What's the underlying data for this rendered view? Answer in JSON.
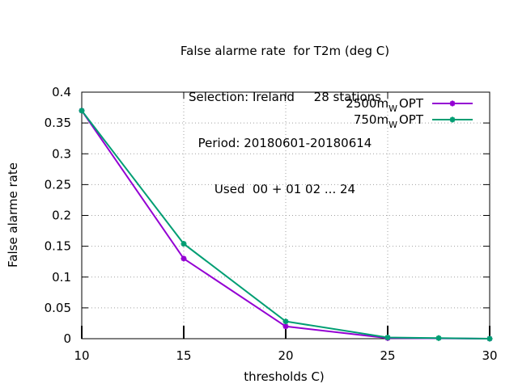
{
  "chart_data": {
    "type": "line",
    "title_lines": [
      "False alarme rate  for T2m (deg C)",
      "Selection: Ireland     28 stations",
      "Period: 20180601-20180614",
      "Used  00 + 01 02 ... 24"
    ],
    "xlabel": "thresholds C)",
    "ylabel": "False alarme rate",
    "xlim": [
      10,
      30
    ],
    "ylim": [
      0,
      0.4
    ],
    "x_ticks": [
      "10",
      "15",
      "20",
      "25",
      "30"
    ],
    "y_ticks": [
      "0",
      "0.05",
      "0.1",
      "0.15",
      "0.2",
      "0.25",
      "0.3",
      "0.35",
      "0.4"
    ],
    "grid": true,
    "legend_position": "top-right",
    "series": [
      {
        "name": "2500m",
        "name_sub": "W",
        "name_suffix": "OPT",
        "color": "#9400d3",
        "x": [
          10,
          15,
          20,
          25,
          30
        ],
        "y": [
          0.37,
          0.13,
          0.02,
          0.001,
          0.0
        ]
      },
      {
        "name": "750m",
        "name_sub": "W",
        "name_suffix": "OPT",
        "color": "#009e73",
        "x": [
          10,
          15,
          20,
          25,
          27.5,
          30
        ],
        "y": [
          0.37,
          0.154,
          0.028,
          0.002,
          0.001,
          0.0
        ]
      }
    ]
  }
}
